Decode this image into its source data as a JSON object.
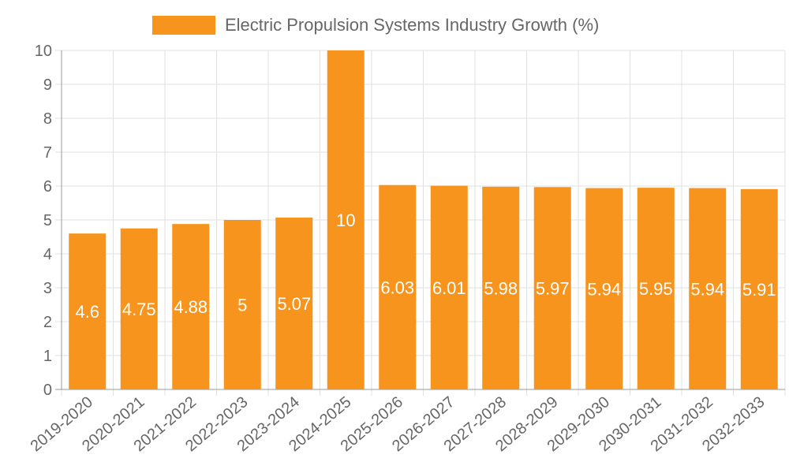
{
  "chart_data": {
    "type": "bar",
    "legend": {
      "label": "Electric Propulsion Systems Industry Growth (%)",
      "position": "top"
    },
    "categories": [
      "2019-2020",
      "2020-2021",
      "2021-2022",
      "2022-2023",
      "2023-2024",
      "2024-2025",
      "2025-2026",
      "2026-2027",
      "2027-2028",
      "2028-2029",
      "2029-2030",
      "2030-2031",
      "2031-2032",
      "2032-2033"
    ],
    "series": [
      {
        "name": "Electric Propulsion Systems Industry Growth (%)",
        "values": [
          4.6,
          4.75,
          4.88,
          5,
          5.07,
          10,
          6.03,
          6.01,
          5.98,
          5.97,
          5.94,
          5.95,
          5.94,
          5.91
        ]
      }
    ],
    "ylim": [
      0,
      10
    ],
    "yticks": [
      "0",
      "1",
      "2",
      "3",
      "4",
      "5",
      "6",
      "7",
      "8",
      "9",
      "10"
    ],
    "grid": true,
    "bar_color": "#f7941d",
    "grid_color": "#e0e0e0",
    "text_color": "#666666"
  }
}
